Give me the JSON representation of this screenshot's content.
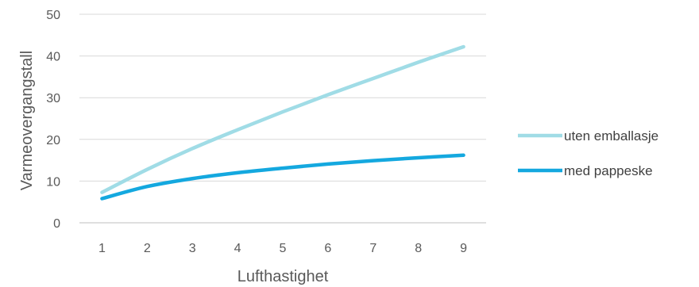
{
  "chart_data": {
    "type": "line",
    "title": "",
    "xlabel": "Lufthastighet",
    "ylabel": "Varmeovergangstall",
    "x": [
      1,
      2,
      3,
      4,
      5,
      6,
      7,
      8,
      9
    ],
    "x_tick_labels": [
      "1",
      "2",
      "3",
      "4",
      "5",
      "6",
      "7",
      "8",
      "9"
    ],
    "y_tick_labels": [
      "0",
      "10",
      "20",
      "30",
      "40",
      "50"
    ],
    "ylim": [
      0,
      50
    ],
    "grid": true,
    "legend_position": "right",
    "series": [
      {
        "name": "uten emballasje",
        "color": "#a0dce6",
        "values": [
          7.3,
          12.8,
          17.8,
          22.3,
          26.6,
          30.7,
          34.6,
          38.5,
          42.2
        ]
      },
      {
        "name": "med pappeske",
        "color": "#14a8df",
        "values": [
          5.8,
          8.7,
          10.6,
          12.0,
          13.1,
          14.1,
          14.9,
          15.6,
          16.2
        ]
      }
    ]
  }
}
